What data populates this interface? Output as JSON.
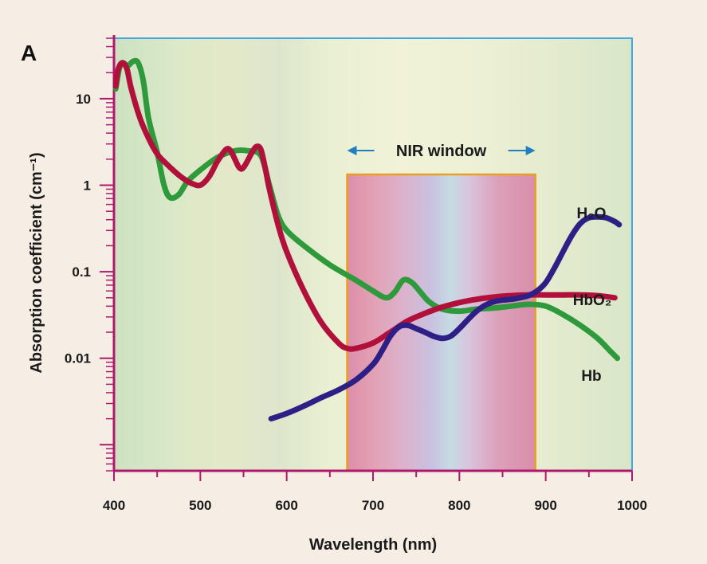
{
  "panel_label": "A",
  "chart_data": {
    "type": "line",
    "xlabel": "Wavelength (nm)",
    "ylabel": "Absorption coefficient (cm⁻¹)",
    "xlim": [
      400,
      1000
    ],
    "ylim": [
      0.0005,
      50
    ],
    "y_scale": "log",
    "x_ticks": [
      400,
      500,
      600,
      700,
      800,
      900,
      1000
    ],
    "y_ticks": [
      {
        "value": 10,
        "label": "10"
      },
      {
        "value": 1,
        "label": "1"
      },
      {
        "value": 0.1,
        "label": "0.1"
      },
      {
        "value": 0.01,
        "label": "0.01"
      }
    ],
    "grid": false,
    "band": {
      "label": "NIR window",
      "x_start": 670,
      "x_end": 888
    },
    "series": [
      {
        "name": "H₂O",
        "color": "#2e1f86",
        "points": [
          [
            582,
            0.002
          ],
          [
            600,
            0.0023
          ],
          [
            620,
            0.0028
          ],
          [
            640,
            0.0035
          ],
          [
            660,
            0.0043
          ],
          [
            680,
            0.0056
          ],
          [
            700,
            0.0085
          ],
          [
            710,
            0.012
          ],
          [
            720,
            0.018
          ],
          [
            730,
            0.023
          ],
          [
            740,
            0.024
          ],
          [
            750,
            0.022
          ],
          [
            760,
            0.02
          ],
          [
            770,
            0.018
          ],
          [
            780,
            0.017
          ],
          [
            790,
            0.018
          ],
          [
            800,
            0.022
          ],
          [
            810,
            0.028
          ],
          [
            820,
            0.035
          ],
          [
            830,
            0.041
          ],
          [
            840,
            0.045
          ],
          [
            850,
            0.047
          ],
          [
            860,
            0.048
          ],
          [
            870,
            0.05
          ],
          [
            880,
            0.053
          ],
          [
            890,
            0.06
          ],
          [
            900,
            0.075
          ],
          [
            910,
            0.11
          ],
          [
            920,
            0.17
          ],
          [
            930,
            0.26
          ],
          [
            940,
            0.36
          ],
          [
            950,
            0.42
          ],
          [
            960,
            0.43
          ],
          [
            970,
            0.42
          ],
          [
            980,
            0.38
          ],
          [
            985,
            0.35
          ]
        ]
      },
      {
        "name": "HbO₂",
        "color": "#b0103a",
        "points": [
          [
            402,
            14
          ],
          [
            405,
            22
          ],
          [
            410,
            26
          ],
          [
            415,
            22
          ],
          [
            420,
            13
          ],
          [
            430,
            6
          ],
          [
            440,
            3.5
          ],
          [
            450,
            2.3
          ],
          [
            460,
            1.8
          ],
          [
            470,
            1.45
          ],
          [
            480,
            1.2
          ],
          [
            490,
            1.05
          ],
          [
            500,
            1.0
          ],
          [
            510,
            1.25
          ],
          [
            520,
            1.9
          ],
          [
            530,
            2.6
          ],
          [
            535,
            2.5
          ],
          [
            540,
            2.0
          ],
          [
            545,
            1.6
          ],
          [
            550,
            1.6
          ],
          [
            560,
            2.4
          ],
          [
            565,
            2.8
          ],
          [
            570,
            2.6
          ],
          [
            575,
            1.6
          ],
          [
            580,
            0.9
          ],
          [
            590,
            0.35
          ],
          [
            600,
            0.17
          ],
          [
            620,
            0.06
          ],
          [
            640,
            0.026
          ],
          [
            660,
            0.015
          ],
          [
            670,
            0.013
          ],
          [
            680,
            0.013
          ],
          [
            700,
            0.015
          ],
          [
            720,
            0.02
          ],
          [
            740,
            0.027
          ],
          [
            760,
            0.033
          ],
          [
            780,
            0.039
          ],
          [
            800,
            0.044
          ],
          [
            820,
            0.048
          ],
          [
            840,
            0.051
          ],
          [
            860,
            0.053
          ],
          [
            880,
            0.054
          ],
          [
            900,
            0.054
          ],
          [
            920,
            0.054
          ],
          [
            940,
            0.054
          ],
          [
            960,
            0.053
          ],
          [
            980,
            0.05
          ]
        ]
      },
      {
        "name": "Hb",
        "color": "#2e9a3c",
        "points": [
          [
            402,
            13
          ],
          [
            406,
            22
          ],
          [
            410,
            26
          ],
          [
            416,
            24
          ],
          [
            422,
            27
          ],
          [
            428,
            26
          ],
          [
            434,
            16
          ],
          [
            440,
            6
          ],
          [
            450,
            2.4
          ],
          [
            458,
            1.0
          ],
          [
            465,
            0.72
          ],
          [
            475,
            0.78
          ],
          [
            485,
            1.1
          ],
          [
            500,
            1.5
          ],
          [
            520,
            2.1
          ],
          [
            540,
            2.5
          ],
          [
            555,
            2.5
          ],
          [
            570,
            2.2
          ],
          [
            580,
            1.0
          ],
          [
            590,
            0.45
          ],
          [
            600,
            0.3
          ],
          [
            620,
            0.2
          ],
          [
            650,
            0.12
          ],
          [
            680,
            0.08
          ],
          [
            700,
            0.06
          ],
          [
            715,
            0.05
          ],
          [
            725,
            0.058
          ],
          [
            735,
            0.08
          ],
          [
            745,
            0.075
          ],
          [
            755,
            0.058
          ],
          [
            765,
            0.045
          ],
          [
            780,
            0.037
          ],
          [
            800,
            0.035
          ],
          [
            820,
            0.037
          ],
          [
            840,
            0.038
          ],
          [
            860,
            0.04
          ],
          [
            880,
            0.042
          ],
          [
            900,
            0.04
          ],
          [
            920,
            0.032
          ],
          [
            940,
            0.024
          ],
          [
            960,
            0.017
          ],
          [
            975,
            0.012
          ],
          [
            983,
            0.01
          ]
        ]
      }
    ]
  }
}
